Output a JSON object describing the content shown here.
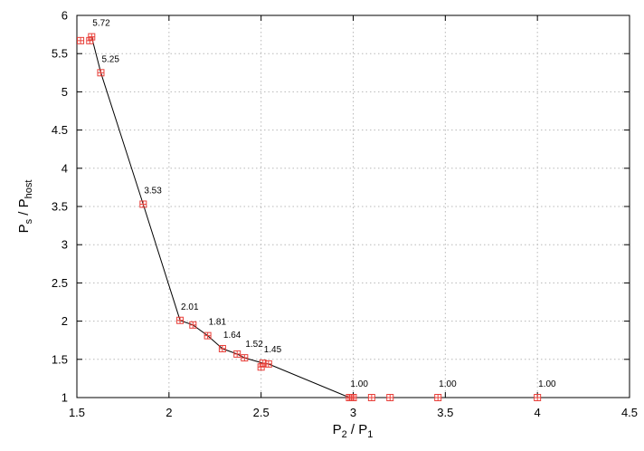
{
  "chart_data": {
    "type": "scatter",
    "xlim": [
      1.5,
      4.5
    ],
    "ylim": [
      1,
      6
    ],
    "x_ticks": [
      "1.5",
      "2",
      "2.5",
      "3",
      "3.5",
      "4",
      "4.5"
    ],
    "y_ticks": [
      "1",
      "1.5",
      "2",
      "2.5",
      "3",
      "3.5",
      "4",
      "4.5",
      "5",
      "5.5",
      "6"
    ],
    "xlabel": {
      "main": "P",
      "sub1": "2",
      "mid": " / P",
      "sub2": "1"
    },
    "ylabel": {
      "main": "P",
      "sub1": "s",
      "mid": " / P",
      "sub2": "host"
    },
    "grid": true,
    "colors": {
      "points": "#e8403a",
      "line": "#000000",
      "grid": "#b8b8b8"
    },
    "points": [
      {
        "x": 1.52,
        "y": 5.67
      },
      {
        "x": 1.57,
        "y": 5.67
      },
      {
        "x": 1.58,
        "y": 5.72
      },
      {
        "x": 1.63,
        "y": 5.25
      },
      {
        "x": 1.86,
        "y": 3.53
      },
      {
        "x": 2.06,
        "y": 2.01
      },
      {
        "x": 2.13,
        "y": 1.95
      },
      {
        "x": 2.21,
        "y": 1.81
      },
      {
        "x": 2.29,
        "y": 1.64
      },
      {
        "x": 2.37,
        "y": 1.57
      },
      {
        "x": 2.41,
        "y": 1.52
      },
      {
        "x": 2.5,
        "y": 1.4
      },
      {
        "x": 2.51,
        "y": 1.45
      },
      {
        "x": 2.54,
        "y": 1.44
      },
      {
        "x": 2.98,
        "y": 1.0
      },
      {
        "x": 2.99,
        "y": 1.0
      },
      {
        "x": 3.0,
        "y": 1.0
      },
      {
        "x": 3.1,
        "y": 1.0
      },
      {
        "x": 3.2,
        "y": 1.0
      },
      {
        "x": 3.46,
        "y": 1.0
      },
      {
        "x": 4.0,
        "y": 1.0
      }
    ],
    "frontier": [
      {
        "x": 1.58,
        "y": 5.72
      },
      {
        "x": 1.63,
        "y": 5.25
      },
      {
        "x": 1.86,
        "y": 3.53
      },
      {
        "x": 2.06,
        "y": 2.01
      },
      {
        "x": 2.13,
        "y": 1.95
      },
      {
        "x": 2.21,
        "y": 1.81
      },
      {
        "x": 2.29,
        "y": 1.64
      },
      {
        "x": 2.37,
        "y": 1.57
      },
      {
        "x": 2.41,
        "y": 1.52
      },
      {
        "x": 2.51,
        "y": 1.45
      },
      {
        "x": 2.54,
        "y": 1.44
      },
      {
        "x": 2.98,
        "y": 1.0
      }
    ],
    "annotations": [
      {
        "text": "5.72",
        "x": 1.58,
        "y": 5.72
      },
      {
        "text": "5.25",
        "x": 1.63,
        "y": 5.25
      },
      {
        "text": "3.53",
        "x": 1.86,
        "y": 3.53
      },
      {
        "text": "2.01",
        "x": 2.06,
        "y": 2.01
      },
      {
        "text": "1.81",
        "x": 2.21,
        "y": 1.81
      },
      {
        "text": "1.64",
        "x": 2.29,
        "y": 1.64
      },
      {
        "text": "1.52",
        "x": 2.41,
        "y": 1.52
      },
      {
        "text": "1.45",
        "x": 2.51,
        "y": 1.45
      },
      {
        "text": "1.00",
        "x": 2.98,
        "y": 1.0
      },
      {
        "text": "1.00",
        "x": 3.46,
        "y": 1.0
      },
      {
        "text": "1.00",
        "x": 4.0,
        "y": 1.0
      }
    ]
  }
}
